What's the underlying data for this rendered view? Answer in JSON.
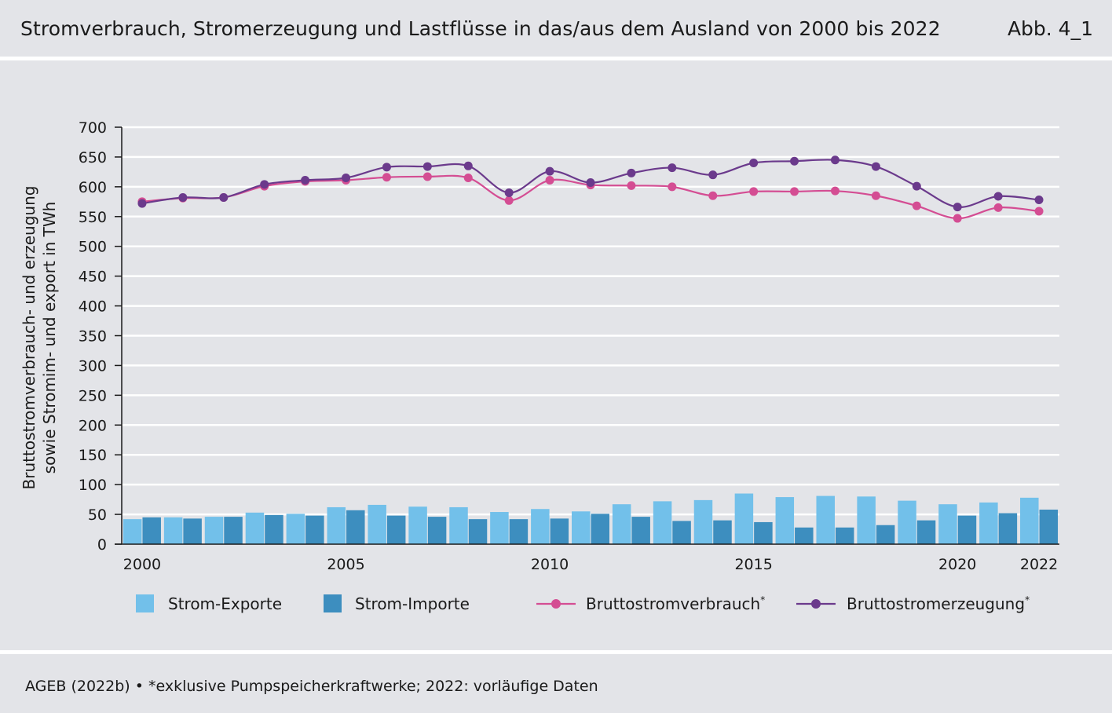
{
  "header": {
    "title": "Stromverbrauch, Stromerzeugung und Lastflüsse in das/aus dem Ausland von 2000 bis 2022",
    "figure_number": "Abb. 4_1"
  },
  "footer": {
    "source": "AGEB (2022b) • *exklusive Pumpspeicherkraftwerke; 2022: vorläufige Daten"
  },
  "colors": {
    "exports": "#72c0ea",
    "imports": "#3d8ebf",
    "consumption": "#d44d93",
    "generation": "#6b3a8c",
    "grid": "#ffffff",
    "axis": "#1a1a1a"
  },
  "chart_data": {
    "type": "bar+line",
    "title": "Stromverbrauch, Stromerzeugung und Lastflüsse in das/aus dem Ausland von 2000 bis 2022",
    "ylabel_line1": "Bruttostromverbrauch- und erzeugung",
    "ylabel_line2": "sowie Stromim- und export in TWh",
    "ylim": [
      0,
      700
    ],
    "yticks": [
      0,
      50,
      100,
      150,
      200,
      250,
      300,
      350,
      400,
      450,
      500,
      550,
      600,
      650,
      700
    ],
    "ytick_labels": [
      "0",
      "50",
      "100",
      "150",
      "200",
      "250",
      "300",
      "350",
      "400",
      "450",
      "500",
      "550",
      "600",
      "650",
      "700"
    ],
    "xtick_labels": [
      "2000",
      "2005",
      "2010",
      "2015",
      "2020",
      "2022"
    ],
    "xtick_years": [
      2000,
      2005,
      2010,
      2015,
      2020,
      2022
    ],
    "x": [
      2000,
      2001,
      2002,
      2003,
      2004,
      2005,
      2006,
      2007,
      2008,
      2009,
      2010,
      2011,
      2012,
      2013,
      2014,
      2015,
      2016,
      2017,
      2018,
      2019,
      2020,
      2021,
      2022
    ],
    "series": [
      {
        "name": "Strom-Exporte",
        "kind": "bar",
        "values": [
          42,
          45,
          46,
          53,
          51,
          62,
          66,
          63,
          62,
          54,
          59,
          55,
          67,
          72,
          74,
          85,
          79,
          81,
          80,
          73,
          67,
          70,
          78
        ]
      },
      {
        "name": "Strom-Importe",
        "kind": "bar",
        "values": [
          45,
          43,
          46,
          49,
          48,
          57,
          48,
          46,
          42,
          42,
          43,
          51,
          46,
          39,
          40,
          37,
          28,
          28,
          32,
          40,
          48,
          52,
          58
        ]
      },
      {
        "name": "Bruttostromverbrauch",
        "kind": "line",
        "values": [
          575,
          581,
          582,
          601,
          609,
          611,
          616,
          617,
          615,
          577,
          611,
          603,
          602,
          600,
          585,
          592,
          592,
          593,
          585,
          568,
          547,
          565,
          559
        ]
      },
      {
        "name": "Bruttostromerzeugung",
        "kind": "line",
        "values": [
          572,
          582,
          582,
          604,
          611,
          615,
          633,
          634,
          635,
          590,
          626,
          607,
          623,
          632,
          620,
          640,
          643,
          645,
          634,
          601,
          566,
          584,
          578
        ]
      }
    ],
    "legend": {
      "position": "bottom",
      "items": [
        {
          "label": "Strom-Exporte",
          "sup": ""
        },
        {
          "label": "Strom-Importe",
          "sup": ""
        },
        {
          "label": "Bruttostromverbrauch",
          "sup": "*"
        },
        {
          "label": "Bruttostromerzeugung",
          "sup": "*"
        }
      ]
    }
  }
}
